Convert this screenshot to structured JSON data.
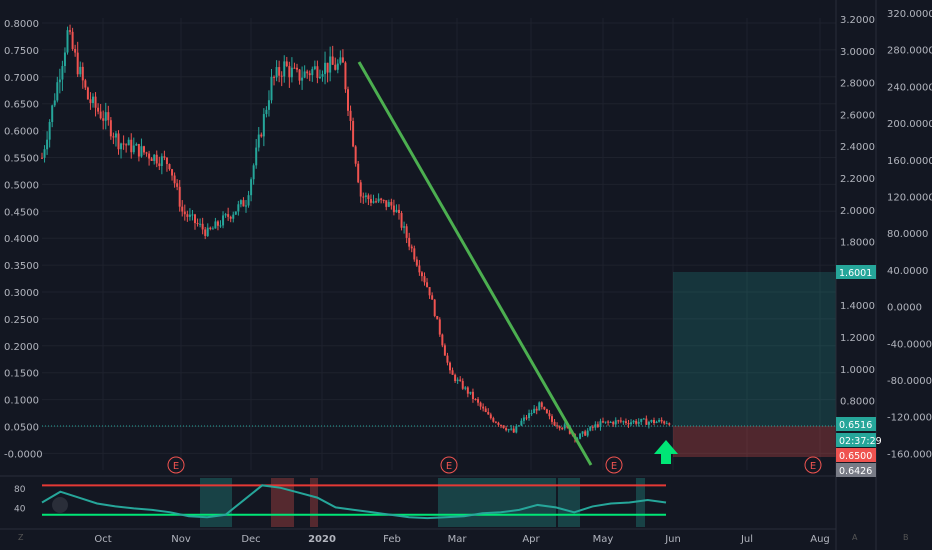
{
  "colors": {
    "background": "#131722",
    "grid": "#1e222d",
    "up": "#26a69a",
    "down": "#ef5350",
    "trendline": "#4caf50",
    "arrow": "#00e676",
    "axis_text": "#b2b5be",
    "rsi_line": "#26a69a",
    "rsi_bands": "#e53935"
  },
  "chart_data": [
    {
      "type": "candlestick",
      "axes": {
        "x_ticks": [
          "Oct",
          "Nov",
          "Dec",
          "2020",
          "Feb",
          "Mar",
          "Apr",
          "May",
          "Jun",
          "Jul",
          "Aug"
        ],
        "y_left_ticks": [
          "0.8000",
          "0.7500",
          "0.7000",
          "0.6500",
          "0.6000",
          "0.5500",
          "0.5000",
          "0.4500",
          "0.4000",
          "0.3500",
          "0.3000",
          "0.2500",
          "0.2000",
          "0.1500",
          "0.1000",
          "0.0500",
          "-0.0000"
        ],
        "y_mid_ticks": [
          "3.2000",
          "3.0000",
          "2.8000",
          "2.6000",
          "2.4000",
          "2.2000",
          "2.0000",
          "1.8000",
          "1.6000",
          "1.4000",
          "1.2000",
          "1.0000",
          "0.8000"
        ],
        "y_right_ticks": [
          "320.0000",
          "280.0000",
          "240.0000",
          "200.0000",
          "160.0000",
          "120.0000",
          "80.0000",
          "40.0000",
          "0.0000",
          "-40.0000",
          "-80.0000",
          "-120.0000",
          "-160.0000"
        ],
        "ylim_left": [
          -0.01,
          0.82
        ]
      },
      "price_path": {
        "days": [
          0,
          10,
          18,
          25,
          30,
          40,
          50,
          55,
          65,
          80,
          90,
          95,
          100,
          110,
          118,
          125,
          130,
          138,
          145,
          152,
          160,
          168,
          175,
          185,
          188,
          195,
          200,
          205,
          210,
          218,
          225,
          230,
          238,
          245,
          250
        ],
        "close": [
          0.55,
          0.78,
          0.66,
          0.62,
          0.58,
          0.56,
          0.54,
          0.45,
          0.41,
          0.47,
          0.69,
          0.72,
          0.7,
          0.72,
          0.72,
          0.48,
          0.47,
          0.46,
          0.38,
          0.3,
          0.15,
          0.11,
          0.07,
          0.04,
          0.06,
          0.09,
          0.06,
          0.05,
          0.03,
          0.055,
          0.06,
          0.06,
          0.06,
          0.06,
          0.06
        ]
      },
      "price_labels": [
        {
          "text": "1.6001",
          "color": "#26a69a"
        },
        {
          "text": "0.6516",
          "color": "#26a69a"
        },
        {
          "text": "02:37:29",
          "color": "#26a69a"
        },
        {
          "text": "0.6500",
          "color": "#ef5350"
        },
        {
          "text": "0.6426",
          "color": "#787b86"
        }
      ],
      "earnings_markers": [
        "E",
        "E",
        "E",
        "E"
      ],
      "position_tool": {
        "target_zone": "teal",
        "stop_zone": "red"
      },
      "trendline": "descending green line from 2020 high to May",
      "signal": "green up arrow near Jun"
    },
    {
      "type": "line",
      "panel": "oscillator",
      "y_ticks": [
        "80",
        "40"
      ],
      "ylim": [
        0,
        100
      ],
      "upper_band": 85,
      "lower_band": 25,
      "values": [
        50,
        72,
        60,
        48,
        42,
        38,
        35,
        30,
        22,
        20,
        25,
        55,
        85,
        80,
        70,
        60,
        40,
        35,
        30,
        25,
        20,
        18,
        20,
        22,
        28,
        30,
        35,
        45,
        40,
        30,
        42,
        48,
        50,
        55,
        50
      ]
    }
  ],
  "side_labels": {
    "left_mark": "Z",
    "bottom_left_mark": "Z",
    "bottom_mid_mark": "A",
    "bottom_right_mark": "B"
  }
}
